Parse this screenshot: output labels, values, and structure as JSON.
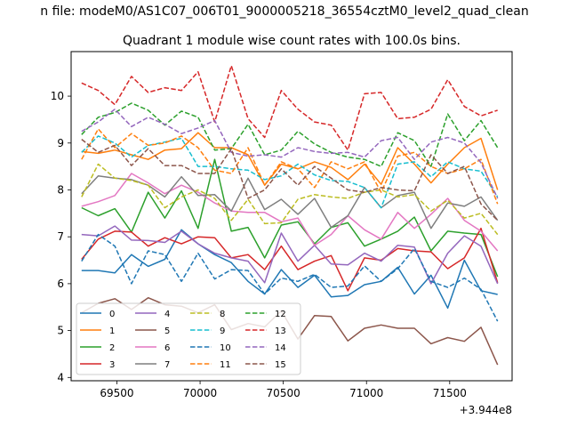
{
  "figure": {
    "suptitle": "n file: modeM0/AS1C07_006T01_9000005218_36554cztM0_level2_quad_clean",
    "offset_label": "+3.944e8"
  },
  "chart_data": {
    "type": "line",
    "title": "Quadrant 1 module wise count rates with 100.0s bins.",
    "xlabel": "",
    "ylabel": "",
    "xlim": [
      69225,
      71875
    ],
    "ylim": [
      3.93,
      10.95
    ],
    "x_offset": 394400000,
    "grid": false,
    "legend_placement": "lower-left",
    "legend_columns": 4,
    "x_ticks": [
      69500,
      70000,
      70500,
      71000,
      71500
    ],
    "x_tick_labels": [
      "69500",
      "70000",
      "70500",
      "71000",
      "71500"
    ],
    "y_ticks": [
      4,
      5,
      6,
      7,
      8,
      9,
      10
    ],
    "y_tick_labels": [
      "4",
      "5",
      "6",
      "7",
      "8",
      "9",
      "10"
    ],
    "x": [
      69288,
      69388,
      69488,
      69588,
      69688,
      69788,
      69888,
      69988,
      70088,
      70188,
      70288,
      70388,
      70488,
      70588,
      70688,
      70788,
      70888,
      70988,
      71088,
      71188,
      71288,
      71388,
      71488,
      71588,
      71688,
      71788
    ],
    "series": [
      {
        "name": "0",
        "color": "#1f77b4",
        "dash": "solid",
        "values": [
          6.28,
          6.28,
          6.23,
          6.62,
          6.37,
          6.52,
          7.15,
          6.85,
          6.62,
          6.45,
          6.05,
          5.78,
          6.3,
          5.92,
          6.18,
          5.72,
          5.75,
          5.98,
          6.05,
          6.35,
          5.78,
          6.18,
          5.48,
          6.5,
          5.85,
          5.77
        ]
      },
      {
        "name": "1",
        "color": "#ff7f0e",
        "dash": "solid",
        "values": [
          8.82,
          8.78,
          8.85,
          8.75,
          8.65,
          8.85,
          8.88,
          9.22,
          8.9,
          8.9,
          8.75,
          8.1,
          8.55,
          8.45,
          8.6,
          8.48,
          8.22,
          8.55,
          8.12,
          8.9,
          8.55,
          8.15,
          8.55,
          8.9,
          9.1,
          8.0
        ]
      },
      {
        "name": "2",
        "color": "#2ca02c",
        "dash": "solid",
        "values": [
          7.62,
          7.45,
          7.6,
          7.1,
          7.95,
          7.4,
          7.98,
          7.18,
          8.65,
          7.12,
          7.2,
          6.55,
          7.25,
          7.32,
          6.85,
          7.2,
          7.3,
          6.8,
          6.95,
          7.12,
          7.42,
          6.7,
          7.12,
          7.08,
          7.05,
          6.15
        ]
      },
      {
        "name": "3",
        "color": "#d62728",
        "dash": "solid",
        "values": [
          6.52,
          6.95,
          7.12,
          7.1,
          6.8,
          6.98,
          6.85,
          7.0,
          6.98,
          6.55,
          6.62,
          6.3,
          6.8,
          6.3,
          6.48,
          6.6,
          5.85,
          6.55,
          6.5,
          6.75,
          6.7,
          6.68,
          6.32,
          6.55,
          7.18,
          6.02
        ]
      },
      {
        "name": "4",
        "color": "#9467bd",
        "dash": "solid",
        "values": [
          7.05,
          7.02,
          7.23,
          6.93,
          6.92,
          6.88,
          7.12,
          6.85,
          6.65,
          6.55,
          6.48,
          6.02,
          7.08,
          6.48,
          6.82,
          6.42,
          6.4,
          6.65,
          6.48,
          6.82,
          6.78,
          6.0,
          6.65,
          7.02,
          6.8,
          6.0
        ]
      },
      {
        "name": "5",
        "color": "#8c564b",
        "dash": "solid",
        "values": [
          5.38,
          5.58,
          5.68,
          5.45,
          5.7,
          5.55,
          5.52,
          5.38,
          5.55,
          5.02,
          5.15,
          5.08,
          5.42,
          4.82,
          5.32,
          5.3,
          4.78,
          5.05,
          5.12,
          5.05,
          5.05,
          4.72,
          4.85,
          4.77,
          5.07,
          4.27
        ]
      },
      {
        "name": "6",
        "color": "#e377c2",
        "dash": "solid",
        "values": [
          7.65,
          7.75,
          7.88,
          8.35,
          8.15,
          7.92,
          8.1,
          7.95,
          7.72,
          7.55,
          7.52,
          7.52,
          7.32,
          7.4,
          6.82,
          7.05,
          7.45,
          7.15,
          6.95,
          7.52,
          7.18,
          7.48,
          7.82,
          7.35,
          7.12,
          6.7
        ]
      },
      {
        "name": "7",
        "color": "#7f7f7f",
        "dash": "solid",
        "values": [
          7.92,
          8.3,
          8.25,
          8.22,
          8.1,
          7.85,
          8.28,
          7.88,
          7.9,
          7.55,
          8.25,
          7.58,
          7.8,
          7.48,
          7.82,
          7.2,
          7.45,
          8.05,
          7.62,
          7.88,
          7.95,
          7.18,
          7.72,
          7.65,
          7.85,
          7.35
        ]
      },
      {
        "name": "8",
        "color": "#bcbd22",
        "dash": "dash",
        "values": [
          7.85,
          8.55,
          8.25,
          8.2,
          8.1,
          7.62,
          7.85,
          8.0,
          7.82,
          7.35,
          7.8,
          7.28,
          7.3,
          7.8,
          7.9,
          7.85,
          7.82,
          7.95,
          8.0,
          7.85,
          7.9,
          7.55,
          7.78,
          7.4,
          7.5,
          7.05
        ]
      },
      {
        "name": "9",
        "color": "#17becf",
        "dash": "dash",
        "values": [
          8.8,
          9.15,
          9.0,
          8.7,
          8.95,
          9.02,
          9.1,
          8.5,
          8.5,
          8.45,
          8.42,
          8.22,
          8.3,
          8.55,
          8.32,
          8.2,
          8.18,
          8.05,
          7.62,
          8.55,
          8.6,
          8.28,
          8.6,
          8.45,
          8.4,
          7.85
        ]
      },
      {
        "name": "10",
        "color": "#1f77b4",
        "dash": "dash",
        "values": [
          6.48,
          7.05,
          6.8,
          6.0,
          6.7,
          6.62,
          6.05,
          6.65,
          6.1,
          6.3,
          6.28,
          5.78,
          6.12,
          6.05,
          6.2,
          5.92,
          5.95,
          6.38,
          6.05,
          6.32,
          6.75,
          6.05,
          5.92,
          6.12,
          5.88,
          5.2
        ]
      },
      {
        "name": "11",
        "color": "#ff7f0e",
        "dash": "dash",
        "values": [
          8.65,
          9.3,
          8.9,
          9.2,
          8.95,
          9.0,
          9.15,
          8.9,
          8.42,
          8.35,
          8.9,
          8.1,
          8.6,
          8.45,
          8.05,
          8.6,
          8.45,
          8.6,
          7.95,
          8.72,
          8.8,
          8.5,
          8.35,
          8.45,
          8.65,
          7.7
        ]
      },
      {
        "name": "12",
        "color": "#2ca02c",
        "dash": "dash",
        "values": [
          9.18,
          9.55,
          9.65,
          9.85,
          9.7,
          9.38,
          9.68,
          9.55,
          8.85,
          8.88,
          9.4,
          8.75,
          8.85,
          9.25,
          8.98,
          8.8,
          8.7,
          8.65,
          8.5,
          9.22,
          9.05,
          8.5,
          9.62,
          9.05,
          9.48,
          8.9
        ]
      },
      {
        "name": "13",
        "color": "#d62728",
        "dash": "dash",
        "values": [
          10.28,
          10.12,
          9.82,
          10.42,
          10.08,
          10.18,
          10.12,
          10.52,
          9.45,
          10.65,
          9.52,
          9.12,
          10.12,
          9.72,
          9.45,
          9.38,
          8.85,
          10.05,
          10.08,
          9.52,
          9.55,
          9.72,
          10.35,
          9.78,
          9.58,
          9.7
        ]
      },
      {
        "name": "14",
        "color": "#9467bd",
        "dash": "dash",
        "values": [
          9.25,
          9.45,
          9.72,
          9.35,
          9.55,
          9.4,
          9.2,
          9.32,
          9.48,
          8.8,
          8.72,
          8.75,
          8.7,
          8.9,
          8.82,
          8.78,
          8.8,
          8.7,
          9.05,
          9.12,
          8.65,
          9.02,
          9.12,
          9.0,
          8.58,
          7.82
        ]
      },
      {
        "name": "15",
        "color": "#8c564b",
        "dash": "dash",
        "values": [
          9.08,
          8.8,
          8.95,
          8.52,
          8.88,
          8.52,
          8.52,
          8.35,
          8.35,
          8.88,
          7.82,
          8.0,
          8.45,
          8.1,
          8.5,
          8.25,
          8.0,
          7.95,
          8.05,
          8.0,
          7.98,
          8.75,
          8.35,
          8.5,
          7.7,
          7.35
        ]
      }
    ]
  }
}
